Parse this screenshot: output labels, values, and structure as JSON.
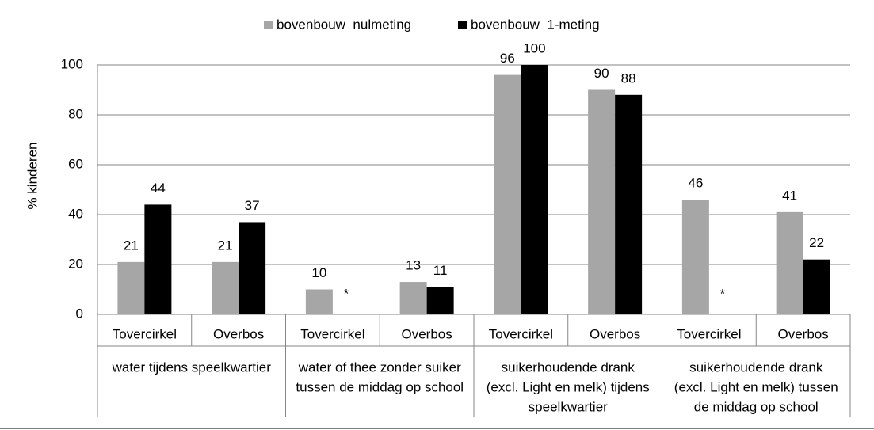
{
  "chart_data": {
    "type": "bar",
    "y_label": "% kinderen",
    "categories": [
      "Tovercirkel",
      "Overbos",
      "Tovercirkel",
      "Overbos",
      "Tovercirkel",
      "Overbos",
      "Tovercirkel",
      "Overbos"
    ],
    "groups": [
      [
        "water tijdens speelkwartier"
      ],
      [
        "water of thee zonder suiker",
        "tussen de middag op school"
      ],
      [
        "suikerhoudende drank",
        "(excl. Light en melk) tijdens",
        "speelkwartier"
      ],
      [
        "suikerhoudende drank",
        "(excl. Light en melk) tussen",
        "de middag op school"
      ]
    ],
    "series": [
      {
        "name": "bovenbouw  nulmeting",
        "color": "#a6a6a6",
        "values": [
          21,
          21,
          10,
          13,
          96,
          90,
          46,
          41
        ]
      },
      {
        "name": "bovenbouw  1-meting",
        "color": "#000000",
        "values": [
          44,
          37,
          null,
          11,
          100,
          88,
          null,
          22
        ],
        "value_labels": [
          "44",
          "37",
          "*",
          "11",
          "100",
          "88",
          "*",
          "22"
        ]
      }
    ],
    "ylim": [
      0,
      100
    ],
    "yticks": [
      0,
      20,
      40,
      60,
      80,
      100
    ],
    "grid": true
  }
}
